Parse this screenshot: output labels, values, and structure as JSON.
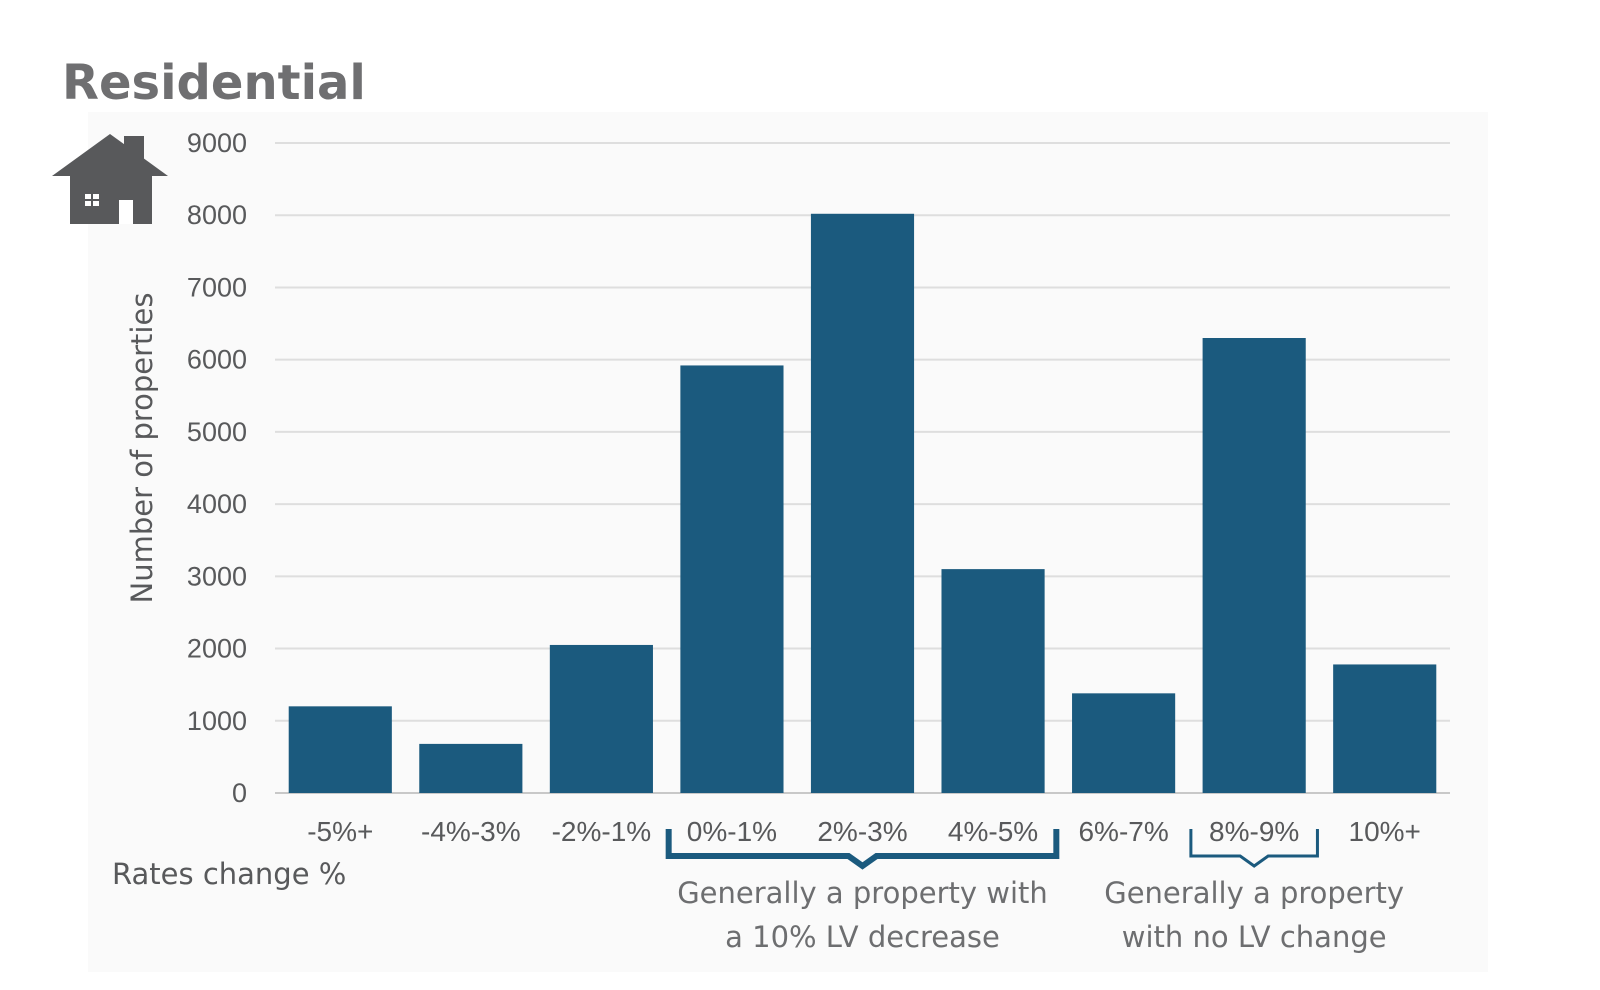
{
  "chart_data": {
    "type": "bar",
    "title": "Residential",
    "xlabel": "Rates change %",
    "ylabel": "Number of properties",
    "categories": [
      "-5%+",
      "-4%-3%",
      "-2%-1%",
      "0%-1%",
      "2%-3%",
      "4%-5%",
      "6%-7%",
      "8%-9%",
      "10%+"
    ],
    "values": [
      1200,
      680,
      2050,
      5920,
      8020,
      3100,
      1380,
      6300,
      1780
    ],
    "ylim": [
      0,
      9000
    ],
    "yticks": [
      0,
      1000,
      2000,
      3000,
      4000,
      5000,
      6000,
      7000,
      8000,
      9000
    ],
    "grid": true,
    "bar_color": "#1b5a7e",
    "annotations": [
      {
        "from": "0%-1%",
        "to": "4%-5%",
        "lines": [
          "Generally a property with",
          "a 10% LV decrease"
        ]
      },
      {
        "from": "8%-9%",
        "to": "8%-9%",
        "lines": [
          "Generally a property",
          "with no LV change"
        ]
      }
    ]
  },
  "icon": "house-icon"
}
